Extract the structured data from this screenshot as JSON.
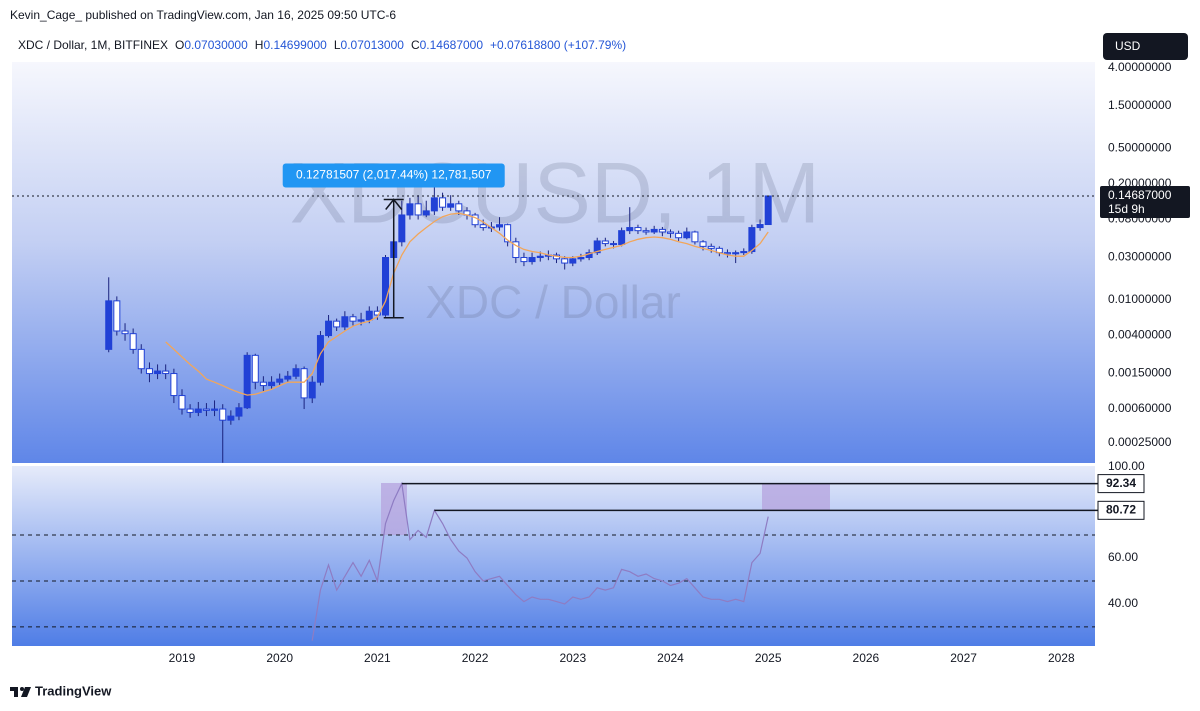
{
  "header": "Kevin_Cage_ published on TradingView.com, Jan 16, 2025 09:50 UTC-6",
  "currency": "USD",
  "brand": "TradingView",
  "chart_data": [
    {
      "type": "candlestick",
      "title": "XDC / Dollar, 1M, BITFINEX",
      "watermark": [
        "XDCUSD, 1M",
        "XDC / Dollar"
      ],
      "legend": {
        "items": [
          {
            "label": "O",
            "value": "0.07030000"
          },
          {
            "label": "H",
            "value": "0.14699000"
          },
          {
            "label": "L",
            "value": "0.07013000"
          },
          {
            "label": "C",
            "value": "0.14687000"
          }
        ],
        "change": "+0.07618800 (+107.79%)"
      },
      "x": [
        2018.25,
        2018.333,
        2018.417,
        2018.5,
        2018.583,
        2018.667,
        2018.75,
        2018.833,
        2018.917,
        2019,
        2019.083,
        2019.167,
        2019.25,
        2019.333,
        2019.417,
        2019.5,
        2019.583,
        2019.667,
        2019.75,
        2019.833,
        2019.917,
        2020,
        2020.083,
        2020.167,
        2020.25,
        2020.333,
        2020.417,
        2020.5,
        2020.583,
        2020.667,
        2020.75,
        2020.833,
        2020.917,
        2021,
        2021.083,
        2021.167,
        2021.25,
        2021.333,
        2021.417,
        2021.5,
        2021.583,
        2021.667,
        2021.75,
        2021.833,
        2021.917,
        2022,
        2022.083,
        2022.167,
        2022.25,
        2022.333,
        2022.417,
        2022.5,
        2022.583,
        2022.667,
        2022.75,
        2022.833,
        2022.917,
        2023,
        2023.083,
        2023.167,
        2023.25,
        2023.333,
        2023.417,
        2023.5,
        2023.583,
        2023.667,
        2023.75,
        2023.833,
        2023.917,
        2024,
        2024.083,
        2024.167,
        2024.25,
        2024.333,
        2024.417,
        2024.5,
        2024.583,
        2024.667,
        2024.75,
        2024.833,
        2024.917,
        2025
      ],
      "open": [
        0.0028,
        0.0098,
        0.0045,
        0.0042,
        0.0028,
        0.0017,
        0.0015,
        0.0016,
        0.0015,
        0.00085,
        0.0006,
        0.00055,
        0.0006,
        0.00058,
        0.0006,
        0.00045,
        0.0005,
        0.00062,
        0.0024,
        0.0012,
        0.0011,
        0.0012,
        0.0013,
        0.0014,
        0.0017,
        0.0008,
        0.0012,
        0.004,
        0.0058,
        0.005,
        0.0065,
        0.0058,
        0.006,
        0.0075,
        0.0068,
        0.03,
        0.045,
        0.09,
        0.12,
        0.09,
        0.1,
        0.14,
        0.11,
        0.12,
        0.1,
        0.09,
        0.07,
        0.065,
        0.066,
        0.07,
        0.045,
        0.03,
        0.027,
        0.03,
        0.031,
        0.032,
        0.029,
        0.026,
        0.029,
        0.03,
        0.034,
        0.046,
        0.043,
        0.042,
        0.06,
        0.065,
        0.06,
        0.058,
        0.062,
        0.058,
        0.056,
        0.05,
        0.058,
        0.045,
        0.04,
        0.038,
        0.034,
        0.033,
        0.034,
        0.035,
        0.065,
        0.0703
      ],
      "high": [
        0.018,
        0.011,
        0.0055,
        0.0048,
        0.0032,
        0.002,
        0.0019,
        0.0019,
        0.0017,
        0.001,
        0.00068,
        0.00072,
        0.0007,
        0.00075,
        0.00068,
        0.00058,
        0.0007,
        0.0026,
        0.0025,
        0.0014,
        0.0014,
        0.0015,
        0.0016,
        0.0019,
        0.0018,
        0.0014,
        0.0045,
        0.0068,
        0.0062,
        0.0075,
        0.007,
        0.0072,
        0.0085,
        0.0085,
        0.032,
        0.06,
        0.13,
        0.14,
        0.15,
        0.13,
        0.19,
        0.16,
        0.15,
        0.13,
        0.11,
        0.095,
        0.08,
        0.075,
        0.085,
        0.072,
        0.05,
        0.034,
        0.034,
        0.035,
        0.036,
        0.034,
        0.031,
        0.031,
        0.033,
        0.037,
        0.05,
        0.05,
        0.046,
        0.065,
        0.11,
        0.07,
        0.065,
        0.068,
        0.066,
        0.062,
        0.06,
        0.065,
        0.06,
        0.047,
        0.043,
        0.04,
        0.037,
        0.036,
        0.038,
        0.07,
        0.08,
        0.14699
      ],
      "low": [
        0.0026,
        0.004,
        0.0035,
        0.0025,
        0.0015,
        0.0012,
        0.0013,
        0.0013,
        0.0007,
        0.00052,
        0.00048,
        0.0005,
        0.0005,
        0.0005,
        0.00015,
        0.0004,
        0.00045,
        0.0006,
        0.001,
        0.00095,
        0.001,
        0.0011,
        0.0012,
        0.0013,
        0.0006,
        0.0007,
        0.0011,
        0.0038,
        0.0045,
        0.0046,
        0.0052,
        0.0052,
        0.0055,
        0.006,
        0.0065,
        0.025,
        0.04,
        0.08,
        0.08,
        0.085,
        0.09,
        0.1,
        0.1,
        0.09,
        0.08,
        0.065,
        0.06,
        0.058,
        0.06,
        0.04,
        0.026,
        0.024,
        0.025,
        0.027,
        0.028,
        0.026,
        0.022,
        0.024,
        0.027,
        0.028,
        0.032,
        0.04,
        0.038,
        0.04,
        0.055,
        0.055,
        0.054,
        0.055,
        0.052,
        0.05,
        0.046,
        0.048,
        0.042,
        0.036,
        0.034,
        0.031,
        0.03,
        0.026,
        0.032,
        0.033,
        0.06,
        0.07013
      ],
      "close": [
        0.0098,
        0.0045,
        0.0042,
        0.0028,
        0.0017,
        0.0015,
        0.0016,
        0.0015,
        0.00085,
        0.0006,
        0.00055,
        0.0006,
        0.00058,
        0.0006,
        0.00045,
        0.0005,
        0.00062,
        0.0024,
        0.0012,
        0.0011,
        0.0012,
        0.0013,
        0.0014,
        0.0017,
        0.0008,
        0.0012,
        0.004,
        0.0058,
        0.005,
        0.0065,
        0.0058,
        0.006,
        0.0075,
        0.0068,
        0.03,
        0.045,
        0.09,
        0.12,
        0.09,
        0.1,
        0.14,
        0.11,
        0.12,
        0.1,
        0.09,
        0.07,
        0.065,
        0.066,
        0.07,
        0.045,
        0.03,
        0.027,
        0.03,
        0.031,
        0.032,
        0.029,
        0.026,
        0.029,
        0.03,
        0.034,
        0.046,
        0.043,
        0.042,
        0.06,
        0.065,
        0.06,
        0.058,
        0.062,
        0.058,
        0.056,
        0.05,
        0.058,
        0.045,
        0.04,
        0.038,
        0.034,
        0.033,
        0.034,
        0.035,
        0.065,
        0.0703,
        0.14687
      ],
      "up_color": "#2141d6",
      "down_color": "#ffffff",
      "wick_color": "#1a237e",
      "ma": {
        "color": "#f2a65a",
        "values": [
          null,
          null,
          null,
          null,
          null,
          null,
          null,
          0.0034,
          0.0028,
          0.0023,
          0.0019,
          0.0016,
          0.0013,
          0.0012,
          0.0011,
          0.001,
          0.00092,
          0.00086,
          0.00088,
          0.00094,
          0.001,
          0.0011,
          0.0012,
          0.0012,
          0.0012,
          0.0015,
          0.0025,
          0.0034,
          0.0039,
          0.0045,
          0.0051,
          0.0055,
          0.0058,
          0.0065,
          0.0097,
          0.02,
          0.032,
          0.045,
          0.055,
          0.065,
          0.076,
          0.086,
          0.092,
          0.094,
          0.09,
          0.084,
          0.075,
          0.065,
          0.056,
          0.047,
          0.041,
          0.037,
          0.035,
          0.034,
          0.032,
          0.031,
          0.03,
          0.03,
          0.031,
          0.033,
          0.035,
          0.037,
          0.039,
          0.041,
          0.045,
          0.048,
          0.05,
          0.051,
          0.05,
          0.048,
          0.045,
          0.043,
          0.04,
          0.038,
          0.036,
          0.034,
          0.032,
          0.031,
          0.031,
          0.036,
          0.043,
          0.058
        ]
      },
      "measure": {
        "label": "0.12781507 (2,017.44%) 12,781,507",
        "x": 2021.167,
        "from": 0.006335,
        "to": 0.13415
      },
      "last_price": {
        "value": 0.14687,
        "label": "0.14687000",
        "countdown": "15d 9h"
      },
      "log_scale": true,
      "grid": false,
      "xlim": [
        2017.26,
        2028.345
      ],
      "ylim": [
        0.000149,
        4.67
      ],
      "yticks": [
        {
          "value": 4,
          "label": "4.00000000"
        },
        {
          "value": 1.5,
          "label": "1.50000000"
        },
        {
          "value": 0.5,
          "label": "0.50000000"
        },
        {
          "value": 0.2,
          "label": "0.20000000"
        },
        {
          "value": 0.08,
          "label": "0.08000000"
        },
        {
          "value": 0.03,
          "label": "0.03000000"
        },
        {
          "value": 0.01,
          "label": "0.01000000"
        },
        {
          "value": 0.004,
          "label": "0.00400000"
        },
        {
          "value": 0.0015,
          "label": "0.00150000"
        },
        {
          "value": 0.0006,
          "label": "0.00060000"
        },
        {
          "value": 0.00025,
          "label": "0.00025000"
        }
      ]
    },
    {
      "type": "line",
      "series": [
        {
          "color": "#8e7cc3",
          "values": [
            null,
            null,
            null,
            null,
            null,
            null,
            null,
            null,
            null,
            null,
            null,
            null,
            null,
            null,
            null,
            null,
            null,
            null,
            null,
            null,
            null,
            null,
            null,
            null,
            null,
            24,
            46,
            57,
            46,
            52,
            58,
            52,
            59,
            50,
            75,
            85,
            92.34,
            68,
            72,
            69,
            80.72,
            75,
            68,
            63,
            60,
            54,
            50,
            51,
            52,
            48,
            44,
            41,
            43,
            42,
            42,
            41,
            40,
            43,
            42,
            43,
            47,
            46,
            47,
            55,
            54,
            52,
            53,
            51,
            50,
            48,
            49,
            51,
            47,
            43,
            42,
            42,
            41,
            42,
            41,
            58,
            62,
            78
          ]
        }
      ],
      "levels": [
        70,
        50,
        30
      ],
      "markers": [
        {
          "value": 92.34,
          "label": "92.34",
          "x": 2021.25
        },
        {
          "value": 80.72,
          "label": "80.72",
          "x": 2021.583
        }
      ],
      "xlim": [
        2017.26,
        2028.345
      ],
      "ylim": [
        21.7,
        100
      ],
      "yticks": [
        {
          "value": 100,
          "label": "100.00"
        },
        {
          "value": 60,
          "label": "60.00"
        },
        {
          "value": 40,
          "label": "40.00"
        }
      ],
      "xticks": [
        2019,
        2020,
        2021,
        2022,
        2023,
        2024,
        2025,
        2026,
        2027,
        2028
      ]
    }
  ]
}
